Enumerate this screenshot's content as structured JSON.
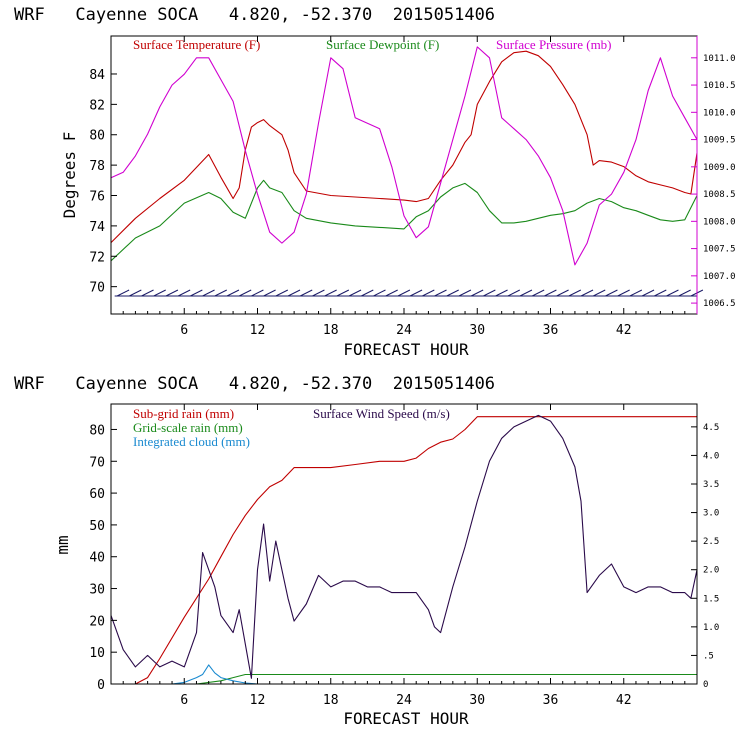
{
  "charts": [
    {
      "title": "WRF   Cayenne SOCA   4.820, -52.370  2015051406",
      "xlabel": "FORECAST HOUR",
      "ylabel_left": "Degrees F",
      "legend": [
        {
          "label": "Surface Temperature (F)",
          "color": "#c00000"
        },
        {
          "label": "Surface Dewpoint (F)",
          "color": "#1a8a1a"
        },
        {
          "label": "Surface Pressure (mb)",
          "color": "#d000d0"
        }
      ],
      "x_ticks": [
        "6",
        "12",
        "18",
        "24",
        "30",
        "36",
        "42"
      ],
      "y_left_ticks": [
        "70",
        "72",
        "74",
        "76",
        "78",
        "80",
        "82",
        "84"
      ],
      "y_right_ticks": [
        "1006.5",
        "1007.0",
        "1007.5",
        "1008.0",
        "1008.5",
        "1009.0",
        "1009.5",
        "1010.0",
        "1010.5",
        "1011.0"
      ],
      "barb_color": "#1a1a66"
    },
    {
      "title": "WRF   Cayenne SOCA   4.820, -52.370  2015051406",
      "xlabel": "FORECAST HOUR",
      "ylabel_left": "mm",
      "legend": [
        {
          "label": "Sub-grid rain (mm)",
          "color": "#c00000"
        },
        {
          "label": "Grid-scale rain (mm)",
          "color": "#1a8a1a"
        },
        {
          "label": "Integrated cloud (mm)",
          "color": "#1a8ad0"
        },
        {
          "label": "Surface Wind Speed (m/s)",
          "color": "#2a0a4a"
        }
      ],
      "x_ticks": [
        "6",
        "12",
        "18",
        "24",
        "30",
        "36",
        "42"
      ],
      "y_left_ticks": [
        "0",
        "10",
        "20",
        "30",
        "40",
        "50",
        "60",
        "70",
        "80"
      ],
      "y_right_ticks": [
        "0",
        ".5",
        "1.0",
        "1.5",
        "2.0",
        "2.5",
        "3.0",
        "3.5",
        "4.0",
        "4.5"
      ]
    }
  ],
  "chart_data": [
    {
      "type": "line",
      "title": "WRF   Cayenne SOCA   4.820, -52.370  2015051406",
      "xlabel": "FORECAST HOUR",
      "ylabel": "Degrees F",
      "xlim": [
        0,
        48
      ],
      "ylim": [
        68.2,
        86.5
      ],
      "y2lim": [
        1006.3,
        1011.4
      ],
      "series": [
        {
          "name": "Surface Temperature (F)",
          "axis": "left",
          "x": [
            0,
            2,
            4,
            6,
            8,
            9,
            10,
            10.5,
            11,
            11.5,
            12,
            12.5,
            13,
            14,
            14.5,
            15,
            16,
            18,
            20,
            22,
            24,
            25,
            26,
            27,
            28,
            29,
            29.5,
            30,
            31,
            32,
            33,
            34,
            35,
            36,
            37,
            38,
            39,
            39.5,
            40,
            41,
            42,
            43,
            44,
            45,
            46,
            47,
            47.5,
            48
          ],
          "y": [
            72.9,
            74.5,
            75.8,
            77.0,
            78.7,
            77.2,
            75.8,
            76.5,
            79.0,
            80.5,
            80.8,
            81.0,
            80.6,
            80.0,
            79.0,
            77.5,
            76.3,
            76.0,
            75.9,
            75.8,
            75.7,
            75.6,
            75.8,
            77.0,
            78.0,
            79.5,
            80.0,
            82.0,
            83.5,
            84.8,
            85.4,
            85.5,
            85.2,
            84.5,
            83.3,
            82.0,
            80.0,
            78.0,
            78.3,
            78.2,
            77.9,
            77.3,
            76.9,
            76.7,
            76.5,
            76.2,
            76.1,
            78.8
          ]
        },
        {
          "name": "Surface Dewpoint (F)",
          "axis": "left",
          "x": [
            0,
            2,
            4,
            6,
            8,
            9,
            10,
            11,
            12,
            12.5,
            13,
            14,
            15,
            16,
            18,
            20,
            22,
            24,
            25,
            26,
            27,
            28,
            29,
            30,
            31,
            32,
            33,
            34,
            35,
            36,
            37,
            38,
            39,
            40,
            41,
            42,
            43,
            44,
            45,
            46,
            47,
            48
          ],
          "y": [
            71.7,
            73.2,
            74.0,
            75.5,
            76.2,
            75.8,
            74.9,
            74.5,
            76.5,
            77.0,
            76.5,
            76.2,
            75.0,
            74.5,
            74.2,
            74.0,
            73.9,
            73.8,
            74.6,
            75.0,
            75.9,
            76.5,
            76.8,
            76.2,
            75.0,
            74.2,
            74.2,
            74.3,
            74.5,
            74.7,
            74.8,
            75.0,
            75.5,
            75.8,
            75.6,
            75.2,
            75.0,
            74.7,
            74.4,
            74.3,
            74.4,
            76.0
          ]
        },
        {
          "name": "Surface Pressure (mb)",
          "axis": "right",
          "x": [
            0,
            1,
            2,
            3,
            4,
            5,
            6,
            7,
            8,
            9,
            10,
            11,
            12,
            13,
            14,
            15,
            16,
            17,
            18,
            19,
            20,
            21,
            22,
            23,
            24,
            25,
            26,
            27,
            28,
            29,
            30,
            31,
            32,
            33,
            34,
            35,
            36,
            37,
            38,
            39,
            40,
            41,
            42,
            43,
            44,
            45,
            46,
            47,
            48
          ],
          "y": [
            1008.8,
            1008.9,
            1009.2,
            1009.6,
            1010.1,
            1010.5,
            1010.7,
            1011.0,
            1011.0,
            1010.6,
            1010.2,
            1009.3,
            1008.5,
            1007.8,
            1007.6,
            1007.8,
            1008.5,
            1009.8,
            1011.0,
            1010.8,
            1009.9,
            1009.8,
            1009.7,
            1009.0,
            1008.1,
            1007.7,
            1007.9,
            1008.7,
            1009.5,
            1010.3,
            1011.2,
            1011.0,
            1009.9,
            1009.7,
            1009.5,
            1009.2,
            1008.8,
            1008.2,
            1007.2,
            1007.6,
            1008.3,
            1008.5,
            1008.9,
            1009.5,
            1010.4,
            1011.0,
            1010.3,
            1009.9,
            1009.5
          ]
        }
      ],
      "wind_barbs": {
        "x_start": 0.5,
        "x_end": 48,
        "x_step": 1
      }
    },
    {
      "type": "line",
      "title": "WRF   Cayenne SOCA   4.820, -52.370  2015051406",
      "xlabel": "FORECAST HOUR",
      "ylabel": "mm",
      "xlim": [
        0,
        48
      ],
      "ylim": [
        0,
        88
      ],
      "y2lim": [
        0,
        4.9
      ],
      "series": [
        {
          "name": "Sub-grid rain (mm)",
          "axis": "left",
          "x": [
            0,
            2,
            3,
            4,
            6,
            8,
            9,
            10,
            11,
            12,
            13,
            14,
            15,
            18,
            20,
            22,
            24,
            25,
            26,
            27,
            28,
            29,
            30,
            31,
            32,
            34,
            36,
            38,
            40,
            42,
            44,
            46,
            48
          ],
          "y": [
            0,
            0,
            2,
            8,
            21,
            33,
            40,
            47,
            53,
            58,
            62,
            64,
            68,
            68,
            69,
            70,
            70,
            71,
            74,
            76,
            77,
            80,
            84,
            84,
            84,
            84,
            84,
            84,
            84,
            84,
            84,
            84,
            84
          ]
        },
        {
          "name": "Grid-scale rain (mm)",
          "axis": "left",
          "x": [
            0,
            7,
            9,
            10,
            11,
            12,
            48
          ],
          "y": [
            0,
            0,
            1,
            2,
            3,
            3,
            3
          ]
        },
        {
          "name": "Integrated cloud (mm)",
          "axis": "left",
          "x": [
            0,
            5,
            6,
            7,
            7.5,
            8,
            8.5,
            9,
            10,
            11,
            12,
            48
          ],
          "y": [
            0,
            0,
            0.5,
            2,
            3,
            6,
            3.5,
            2,
            1,
            0.3,
            0,
            0
          ]
        },
        {
          "name": "Surface Wind Speed (m/s)",
          "axis": "right",
          "x": [
            0,
            1,
            2,
            3,
            4,
            5,
            6,
            7,
            7.5,
            8,
            8.5,
            9,
            10,
            10.5,
            11,
            11.5,
            12,
            12.5,
            13,
            13.5,
            14,
            14.5,
            15,
            16,
            17,
            18,
            19,
            20,
            21,
            22,
            23,
            24,
            25,
            26,
            26.5,
            27,
            28,
            29,
            30,
            31,
            32,
            33,
            34,
            35,
            36,
            37,
            38,
            38.5,
            39,
            40,
            41,
            42,
            43,
            44,
            45,
            46,
            47,
            47.5,
            48
          ],
          "y": [
            1.2,
            0.6,
            0.3,
            0.5,
            0.3,
            0.4,
            0.3,
            0.9,
            2.3,
            2.0,
            1.7,
            1.2,
            0.9,
            1.3,
            0.7,
            0.1,
            2.0,
            2.8,
            1.8,
            2.5,
            2.0,
            1.5,
            1.1,
            1.4,
            1.9,
            1.7,
            1.8,
            1.8,
            1.7,
            1.7,
            1.6,
            1.6,
            1.6,
            1.3,
            1.0,
            0.9,
            1.7,
            2.4,
            3.2,
            3.9,
            4.3,
            4.5,
            4.6,
            4.7,
            4.6,
            4.3,
            3.8,
            3.2,
            1.6,
            1.9,
            2.1,
            1.7,
            1.6,
            1.7,
            1.7,
            1.6,
            1.6,
            1.5,
            2.0
          ]
        }
      ]
    }
  ]
}
